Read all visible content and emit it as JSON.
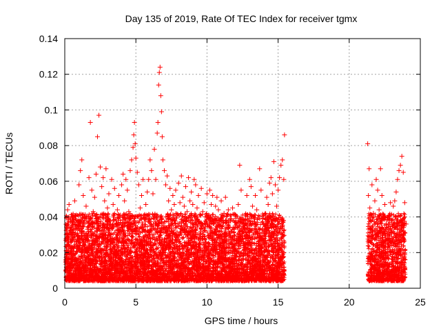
{
  "chart_data": {
    "type": "scatter",
    "title": "Day 135 of 2019, Rate Of TEC Index for receiver tgmx",
    "xlabel": "GPS time / hours",
    "ylabel": "ROTI / TECUs",
    "xlim": [
      0,
      25
    ],
    "ylim": [
      0,
      0.14
    ],
    "xticks": [
      0,
      5,
      10,
      15,
      20,
      25
    ],
    "yticks": [
      0,
      0.02,
      0.04,
      0.06,
      0.08,
      0.1,
      0.12,
      0.14
    ],
    "xtick_labels": [
      "0",
      "5",
      "10",
      "15",
      "20",
      "25"
    ],
    "ytick_labels": [
      "0",
      "0.02",
      "0.04",
      "0.06",
      "0.08",
      "0.1",
      "0.12",
      "0.14"
    ],
    "grid": true,
    "marker": "+",
    "color": "#ff0000",
    "series": [
      {
        "name": "ROTI",
        "points": [
          [
            0.1,
            0.021
          ],
          [
            0.2,
            0.044
          ],
          [
            0.3,
            0.047
          ],
          [
            0.4,
            0.031
          ],
          [
            0.5,
            0.018
          ],
          [
            0.6,
            0.036
          ],
          [
            0.7,
            0.049
          ],
          [
            0.8,
            0.041
          ],
          [
            0.9,
            0.027
          ],
          [
            1.0,
            0.058
          ],
          [
            1.1,
            0.066
          ],
          [
            1.2,
            0.072
          ],
          [
            1.3,
            0.052
          ],
          [
            1.4,
            0.039
          ],
          [
            1.5,
            0.046
          ],
          [
            1.6,
            0.033
          ],
          [
            1.7,
            0.062
          ],
          [
            1.8,
            0.093
          ],
          [
            1.9,
            0.055
          ],
          [
            2.0,
            0.043
          ],
          [
            2.1,
            0.051
          ],
          [
            2.2,
            0.064
          ],
          [
            2.3,
            0.085
          ],
          [
            2.4,
            0.097
          ],
          [
            2.5,
            0.068
          ],
          [
            2.6,
            0.057
          ],
          [
            2.7,
            0.062
          ],
          [
            2.8,
            0.049
          ],
          [
            2.9,
            0.067
          ],
          [
            3.0,
            0.045
          ],
          [
            3.1,
            0.053
          ],
          [
            3.2,
            0.038
          ],
          [
            3.3,
            0.061
          ],
          [
            3.4,
            0.047
          ],
          [
            3.5,
            0.056
          ],
          [
            3.6,
            0.036
          ],
          [
            3.7,
            0.044
          ],
          [
            3.8,
            0.052
          ],
          [
            3.9,
            0.041
          ],
          [
            4.0,
            0.058
          ],
          [
            4.1,
            0.064
          ],
          [
            4.2,
            0.049
          ],
          [
            4.3,
            0.061
          ],
          [
            4.4,
            0.055
          ],
          [
            4.5,
            0.043
          ],
          [
            4.6,
            0.066
          ],
          [
            4.7,
            0.072
          ],
          [
            4.8,
            0.079
          ],
          [
            4.85,
            0.086
          ],
          [
            4.9,
            0.093
          ],
          [
            4.95,
            0.081
          ],
          [
            5.0,
            0.073
          ],
          [
            5.1,
            0.065
          ],
          [
            5.2,
            0.058
          ],
          [
            5.3,
            0.045
          ],
          [
            5.4,
            0.052
          ],
          [
            5.5,
            0.061
          ],
          [
            5.6,
            0.039
          ],
          [
            5.7,
            0.047
          ],
          [
            5.8,
            0.054
          ],
          [
            5.9,
            0.061
          ],
          [
            6.0,
            0.072
          ],
          [
            6.1,
            0.066
          ],
          [
            6.2,
            0.053
          ],
          [
            6.3,
            0.078
          ],
          [
            6.4,
            0.061
          ],
          [
            6.5,
            0.087
          ],
          [
            6.55,
            0.093
          ],
          [
            6.6,
            0.114
          ],
          [
            6.65,
            0.121
          ],
          [
            6.7,
            0.124
          ],
          [
            6.75,
            0.108
          ],
          [
            6.8,
            0.099
          ],
          [
            6.85,
            0.085
          ],
          [
            6.9,
            0.072
          ],
          [
            7.0,
            0.066
          ],
          [
            7.1,
            0.058
          ],
          [
            7.2,
            0.063
          ],
          [
            7.3,
            0.049
          ],
          [
            7.4,
            0.056
          ],
          [
            7.5,
            0.044
          ],
          [
            7.6,
            0.052
          ],
          [
            7.7,
            0.047
          ],
          [
            7.8,
            0.055
          ],
          [
            7.9,
            0.041
          ],
          [
            8.0,
            0.059
          ],
          [
            8.1,
            0.048
          ],
          [
            8.2,
            0.063
          ],
          [
            8.3,
            0.051
          ],
          [
            8.4,
            0.046
          ],
          [
            8.5,
            0.057
          ],
          [
            8.6,
            0.043
          ],
          [
            8.7,
            0.062
          ],
          [
            8.8,
            0.049
          ],
          [
            8.9,
            0.054
          ],
          [
            9.0,
            0.047
          ],
          [
            9.1,
            0.061
          ],
          [
            9.2,
            0.058
          ],
          [
            9.3,
            0.045
          ],
          [
            9.4,
            0.052
          ],
          [
            9.5,
            0.041
          ],
          [
            9.6,
            0.056
          ],
          [
            9.7,
            0.043
          ],
          [
            9.8,
            0.048
          ],
          [
            9.9,
            0.036
          ],
          [
            10.0,
            0.053
          ],
          [
            10.1,
            0.041
          ],
          [
            10.2,
            0.055
          ],
          [
            10.3,
            0.047
          ],
          [
            10.4,
            0.052
          ],
          [
            10.5,
            0.039
          ],
          [
            10.6,
            0.046
          ],
          [
            10.7,
            0.051
          ],
          [
            10.8,
            0.044
          ],
          [
            10.9,
            0.038
          ],
          [
            11.0,
            0.049
          ],
          [
            11.1,
            0.035
          ],
          [
            11.2,
            0.042
          ],
          [
            11.3,
            0.051
          ],
          [
            11.4,
            0.037
          ],
          [
            11.5,
            0.044
          ],
          [
            11.6,
            0.031
          ],
          [
            11.7,
            0.039
          ],
          [
            11.8,
            0.045
          ],
          [
            11.9,
            0.033
          ],
          [
            12.0,
            0.041
          ],
          [
            12.1,
            0.036
          ],
          [
            12.2,
            0.047
          ],
          [
            12.3,
            0.069
          ],
          [
            12.4,
            0.055
          ],
          [
            12.5,
            0.032
          ],
          [
            12.6,
            0.024
          ],
          [
            12.7,
            0.041
          ],
          [
            12.8,
            0.052
          ],
          [
            12.9,
            0.038
          ],
          [
            13.0,
            0.061
          ],
          [
            13.1,
            0.057
          ],
          [
            13.2,
            0.046
          ],
          [
            13.3,
            0.039
          ],
          [
            13.4,
            0.052
          ],
          [
            13.5,
            0.044
          ],
          [
            13.6,
            0.031
          ],
          [
            13.7,
            0.067
          ],
          [
            13.8,
            0.055
          ],
          [
            13.9,
            0.028
          ],
          [
            14.0,
            0.036
          ],
          [
            14.1,
            0.042
          ],
          [
            14.2,
            0.051
          ],
          [
            14.3,
            0.047
          ],
          [
            14.4,
            0.059
          ],
          [
            14.5,
            0.062
          ],
          [
            14.6,
            0.053
          ],
          [
            14.7,
            0.071
          ],
          [
            14.8,
            0.058
          ],
          [
            14.9,
            0.046
          ],
          [
            15.0,
            0.055
          ],
          [
            15.1,
            0.062
          ],
          [
            15.2,
            0.069
          ],
          [
            15.3,
            0.072
          ],
          [
            15.4,
            0.061
          ],
          [
            15.45,
            0.086
          ],
          [
            21.3,
            0.081
          ],
          [
            21.35,
            0.052
          ],
          [
            21.4,
            0.067
          ],
          [
            21.45,
            0.045
          ],
          [
            21.5,
            0.038
          ],
          [
            21.6,
            0.058
          ],
          [
            21.7,
            0.042
          ],
          [
            21.8,
            0.049
          ],
          [
            21.9,
            0.061
          ],
          [
            22.0,
            0.055
          ],
          [
            22.1,
            0.044
          ],
          [
            22.2,
            0.067
          ],
          [
            22.3,
            0.052
          ],
          [
            22.4,
            0.039
          ],
          [
            22.5,
            0.047
          ],
          [
            22.6,
            0.036
          ],
          [
            22.7,
            0.029
          ],
          [
            22.8,
            0.041
          ],
          [
            22.9,
            0.048
          ],
          [
            23.0,
            0.038
          ],
          [
            23.1,
            0.046
          ],
          [
            23.2,
            0.049
          ],
          [
            23.3,
            0.054
          ],
          [
            23.4,
            0.061
          ],
          [
            23.5,
            0.066
          ],
          [
            23.6,
            0.069
          ],
          [
            23.7,
            0.074
          ],
          [
            23.8,
            0.065
          ],
          [
            23.9,
            0.048
          ],
          [
            24.0,
            0.036
          ]
        ]
      }
    ]
  }
}
